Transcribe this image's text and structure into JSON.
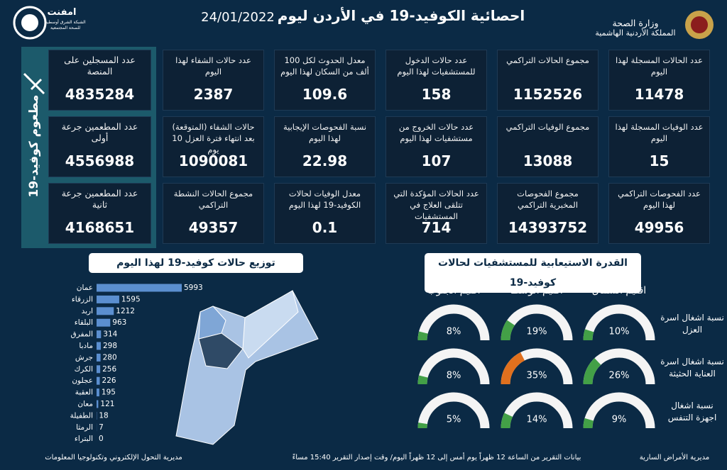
{
  "header": {
    "title": "احصائية الكوفيد-19 في الأردن ليوم",
    "date": "24/01/2022",
    "ministry": "وزارة الصحة",
    "kingdom": "المملكة الأردنية الهاشمية",
    "logo": "امفنت",
    "logo_sub": "الشبكة الشرق أوسطية للصحة المجتمعية"
  },
  "stats": {
    "rows": [
      [
        {
          "label": "عدد الحالات المسجلة لهذا اليوم",
          "value": 11478
        },
        {
          "label": "مجموع الحالات التراكمي",
          "value": 1152526
        },
        {
          "label": "عدد حالات الدخول للمستشفيات لهذا اليوم",
          "value": 158
        },
        {
          "label": "معدل الحدوث لكل 100 ألف من السكان لهذا اليوم",
          "value": 109.6
        },
        {
          "label": "عدد حالات الشفاء لهذا اليوم",
          "value": 2387
        }
      ],
      [
        {
          "label": "عدد الوفيات المسجلة لهذا اليوم",
          "value": 15
        },
        {
          "label": "مجموع الوفيات التراكمي",
          "value": 13088
        },
        {
          "label": "عدد حالات الخروج من مستشفيات لهذا اليوم",
          "value": 107
        },
        {
          "label": "نسبة الفحوصات الإيجابية لهذا اليوم",
          "value": 22.98
        },
        {
          "label": "حالات الشفاء (المتوقعة) بعد انتهاء فترة العزل 10 يوم",
          "value": 1090081
        }
      ],
      [
        {
          "label": "عدد الفحوصات التراكمي لهذا اليوم",
          "value": 49956
        },
        {
          "label": "مجموع الفحوصات المخبرية التراكمي",
          "value": 14393752
        },
        {
          "label": "عدد الحالات المؤكدة التي تتلقى العلاج في المستشفيات",
          "value": 714
        },
        {
          "label": "معدل الوفيات لحالات الكوفيد-19 لهذا اليوم",
          "value": 0.1
        },
        {
          "label": "مجموع الحالات النشطة التراكمي",
          "value": 49357
        }
      ]
    ]
  },
  "vaccine": {
    "title": "مطعوم كوفيد-19",
    "items": [
      {
        "label": "عدد المسجلين على المنصة",
        "value": 4835284
      },
      {
        "label": "عدد المطعمين جرعة أولى",
        "value": 4556988
      },
      {
        "label": "عدد المطعمين جرعة ثانية",
        "value": 4168651
      }
    ]
  },
  "distribution": {
    "type": "bar",
    "title": "توزيع حالات كوفيد-19 لهذا اليوم",
    "color": "#5b8fd0",
    "categories": [
      "عمان",
      "الزرقاء",
      "اربد",
      "البلقاء",
      "المفرق",
      "مادبا",
      "جرش",
      "الكرك",
      "عجلون",
      "العقبة",
      "معان",
      "الطفيلة",
      "الرمثا",
      "البتراء"
    ],
    "values": [
      5993,
      1595,
      1212,
      963,
      314,
      298,
      280,
      256,
      226,
      195,
      121,
      18,
      7,
      0
    ]
  },
  "capacity": {
    "type": "gauge",
    "title": "القدرة الاستيعابية للمستشفيات لحالات كوفيد-19",
    "lim": [
      0,
      100
    ],
    "regions": [
      "اقليم الشمال",
      "اقليم الوسط",
      "اقليم الجنوب"
    ],
    "rows": [
      "نسبة اشغال اسرة العزل",
      "نسبة اشغال اسرة العناية الحثيثة",
      "نسبة اشغال اجهزة التنفس"
    ],
    "values": [
      [
        10,
        19,
        8
      ],
      [
        26,
        35,
        8
      ],
      [
        9,
        14,
        5
      ]
    ],
    "value_labels": [
      [
        "10%",
        "19%",
        "8%"
      ],
      [
        "26%",
        "35%",
        "8%"
      ],
      [
        "9%",
        "14%",
        "5%"
      ]
    ],
    "colors": [
      [
        "#43a047",
        "#43a047",
        "#43a047"
      ],
      [
        "#43a047",
        "#e0701e",
        "#43a047"
      ],
      [
        "#43a047",
        "#43a047",
        "#43a047"
      ]
    ]
  },
  "footer": {
    "right": "مديرية الأمراض السارية",
    "center": "بيانات التقرير من الساعة 12 ظهراً يوم أمس إلى 12 ظهراً اليوم/ وقت إصدار التقرير 15:40 مساءً",
    "left": "مديرية التحول الإلكتروني وتكنولوجيا المعلومات"
  }
}
